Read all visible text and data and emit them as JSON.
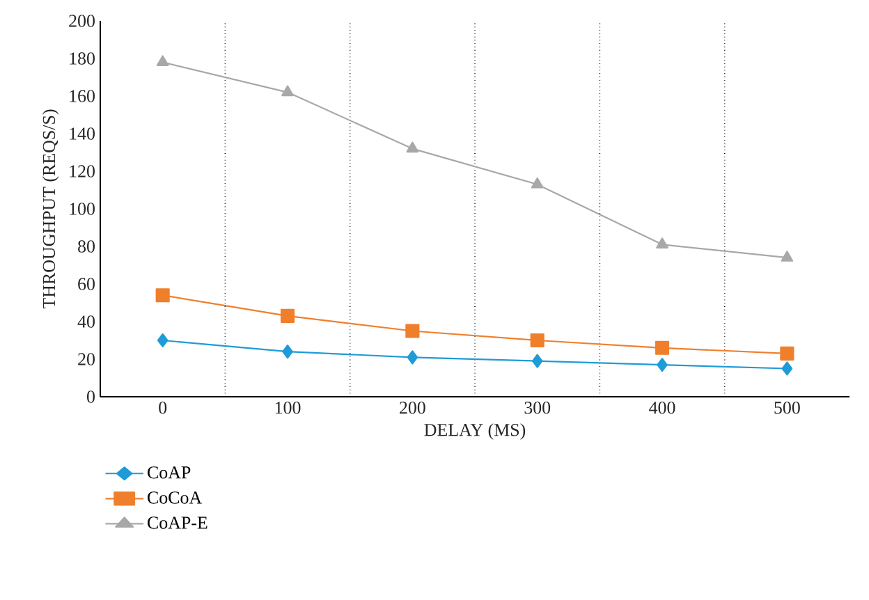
{
  "chart_data": {
    "type": "line",
    "xlabel": "DELAY (MS)",
    "ylabel": "THROUGHPUT (REQS/S)",
    "categories": [
      "0",
      "100",
      "200",
      "300",
      "400",
      "500"
    ],
    "ylim": [
      0,
      200
    ],
    "yticks": [
      0,
      20,
      40,
      60,
      80,
      100,
      120,
      140,
      160,
      180,
      200
    ],
    "grid": "x",
    "legend": "bottom left",
    "line_style": "solid",
    "series": [
      {
        "name": "CoAP",
        "color": "#1f9bd7",
        "marker": "diamond",
        "values": [
          30,
          24,
          21,
          19,
          17,
          15
        ]
      },
      {
        "name": "CoCoA",
        "color": "#f07f2b",
        "marker": "square",
        "values": [
          54,
          43,
          35,
          30,
          26,
          23
        ]
      },
      {
        "name": "CoAP-E",
        "color": "#a8a8a8",
        "marker": "triangle",
        "values": [
          178,
          162,
          132,
          113,
          81,
          74
        ]
      }
    ]
  }
}
